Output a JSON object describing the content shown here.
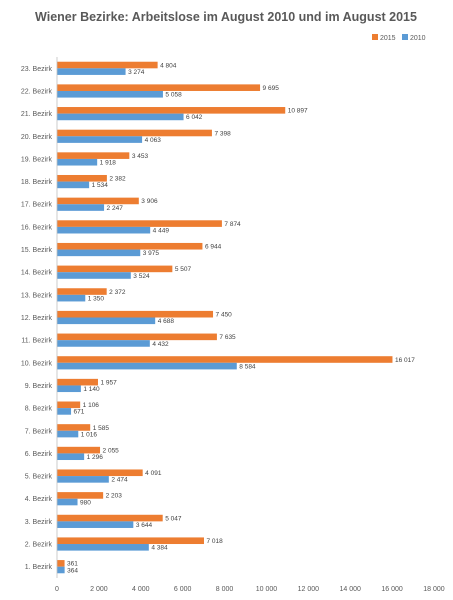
{
  "chart_data": {
    "type": "bar",
    "orientation": "horizontal",
    "title": "Wiener Bezirke: Arbeitslose im August 2010 und im August 2015",
    "categories": [
      "23. Bezirk",
      "22. Bezirk",
      "21. Bezirk",
      "20. Bezirk",
      "19. Bezirk",
      "18. Bezirk",
      "17. Bezirk",
      "16. Bezirk",
      "15. Bezirk",
      "14. Bezirk",
      "13. Bezirk",
      "12. Bezirk",
      "11. Bezirk",
      "10. Bezirk",
      "9. Bezirk",
      "8. Bezirk",
      "7. Bezirk",
      "6. Bezirk",
      "5. Bezirk",
      "4. Bezirk",
      "3. Bezirk",
      "2. Bezirk",
      "1. Bezirk"
    ],
    "series": [
      {
        "name": "2015",
        "color": "#ED7D31",
        "values": [
          4804,
          9695,
          10897,
          7398,
          3453,
          2382,
          3906,
          7874,
          6944,
          5507,
          2372,
          7450,
          7635,
          16017,
          1957,
          1106,
          1585,
          2055,
          4091,
          2203,
          5047,
          7018,
          361
        ],
        "labels": [
          "4 804",
          "9 695",
          "10 897",
          "7 398",
          "3 453",
          "2 382",
          "3 906",
          "7 874",
          "6 944",
          "5 507",
          "2 372",
          "7 450",
          "7 635",
          "16 017",
          "1 957",
          "1 106",
          "1 585",
          "2 055",
          "4 091",
          "2 203",
          "5 047",
          "7 018",
          "361"
        ]
      },
      {
        "name": "2010",
        "color": "#5B9BD5",
        "values": [
          3274,
          5058,
          6042,
          4063,
          1918,
          1534,
          2247,
          4449,
          3975,
          3524,
          1350,
          4688,
          4432,
          8584,
          1140,
          671,
          1016,
          1296,
          2474,
          980,
          3644,
          4384,
          364
        ],
        "labels": [
          "3 274",
          "5 058",
          "6 042",
          "4 063",
          "1 918",
          "1 534",
          "2 247",
          "4 449",
          "3 975",
          "3 524",
          "1 350",
          "4 688",
          "4 432",
          "8 584",
          "1 140",
          "671",
          "1 016",
          "1 296",
          "2 474",
          "980",
          "3 644",
          "4 384",
          "364"
        ]
      }
    ],
    "xlim": [
      0,
      18000
    ],
    "xticks": [
      0,
      2000,
      4000,
      6000,
      8000,
      10000,
      12000,
      14000,
      16000,
      18000
    ],
    "xtick_labels": [
      "0",
      "2 000",
      "4 000",
      "6 000",
      "8 000",
      "10 000",
      "12 000",
      "14 000",
      "16 000",
      "18 000"
    ],
    "grid": false,
    "legend_position": "top-right"
  }
}
